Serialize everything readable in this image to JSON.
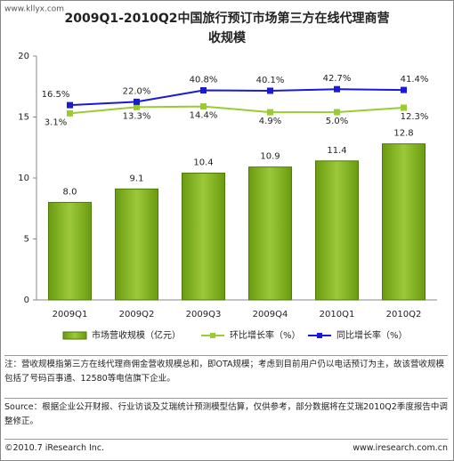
{
  "watermark": "www.kllyx.com",
  "chart_data": {
    "type": "bar",
    "title": "2009Q1-2010Q2中国旅行预订市场第三方在线代理商营",
    "subtitle": "收规模",
    "categories": [
      "2009Q1",
      "2009Q2",
      "2009Q3",
      "2009Q4",
      "2010Q1",
      "2010Q2"
    ],
    "ylim": [
      0,
      20
    ],
    "yticks": [
      0,
      5,
      10,
      15,
      20
    ],
    "y2lim": [
      -303,
      97
    ],
    "series": [
      {
        "name": "市场营收规模（亿元）",
        "type": "bar",
        "color": "#84b41e",
        "values": [
          8.0,
          9.1,
          10.4,
          10.9,
          11.4,
          12.8
        ],
        "value_labels": [
          "8.0",
          "9.1",
          "10.4",
          "10.9",
          "11.4",
          "12.8"
        ]
      },
      {
        "name": "环比增长率（%）",
        "type": "line",
        "axis": "y2",
        "color": "#99cc33",
        "values": [
          3.1,
          13.3,
          14.4,
          4.9,
          5.0,
          12.3
        ],
        "value_labels": [
          "3.1%",
          "13.3%",
          "14.4%",
          "4.9%",
          "5.0%",
          "12.3%"
        ]
      },
      {
        "name": "同比增长率（%）",
        "type": "line",
        "axis": "y2",
        "color": "#1a1ad6",
        "values": [
          16.5,
          22.0,
          40.8,
          40.1,
          42.7,
          41.4
        ],
        "value_labels": [
          "16.5%",
          "22.0%",
          "40.8%",
          "40.1%",
          "42.7%",
          "41.4%"
        ]
      }
    ]
  },
  "note": "注：营收规模指第三方在线代理商佣金营收规模总和，即OTA规模；考虑到目前用户仍以电话预订为主，故该营收规模包括了号码百事通、12580等电信旗下企业。",
  "source": "Source：根据企业公开财报、行业访谈及艾瑞统计预测模型估算，仅供参考，部分数据将在艾瑞2010Q2季度报告中调整修正。",
  "footer_left": "©2010.7 iResearch Inc.",
  "footer_right": "www.iresearch.com.cn"
}
